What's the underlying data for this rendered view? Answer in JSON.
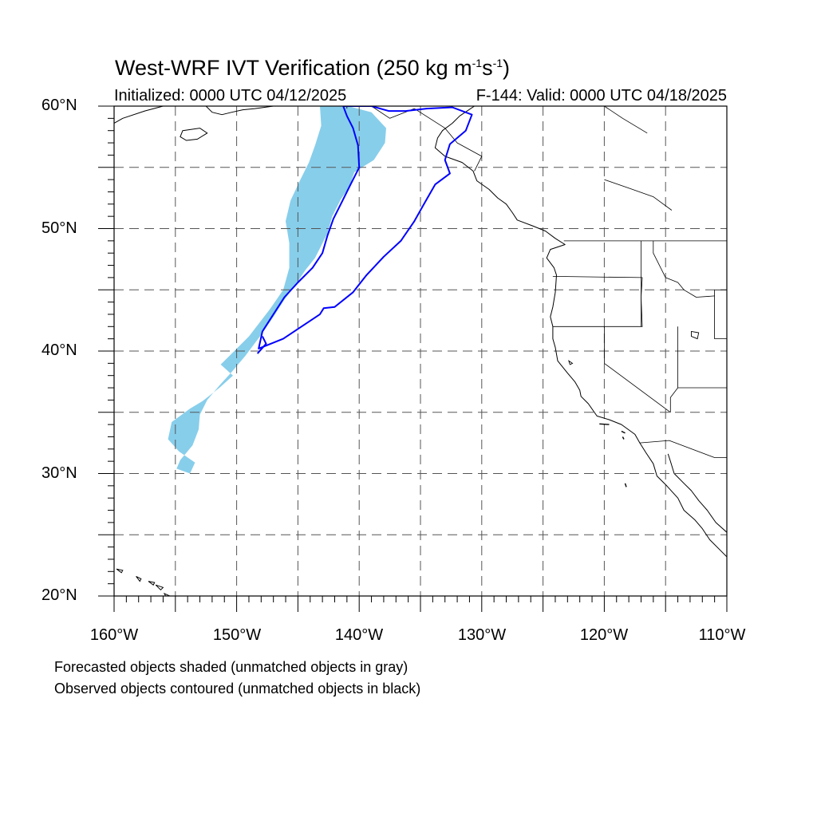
{
  "title": {
    "main": "West-WRF IVT Verification (250 kg m",
    "exp1": "-1",
    "mid": "s",
    "exp2": "-1",
    "end": ")"
  },
  "initialized": "Initialized: 0000 UTC 04/12/2025",
  "valid": "F-144: Valid: 0000 UTC 04/18/2025",
  "lat_labels": [
    "60°N",
    "50°N",
    "40°N",
    "30°N",
    "20°N"
  ],
  "lon_labels": [
    "160°W",
    "150°W",
    "140°W",
    "130°W",
    "120°W",
    "110°W"
  ],
  "captions": [
    "Forecasted objects shaded (unmatched objects in gray)",
    "Observed objects contoured (unmatched objects in black)"
  ],
  "map": {
    "lon_range": [
      -160,
      -110
    ],
    "lat_range": [
      20,
      60
    ],
    "grid_interval_deg": 5,
    "grid_style": "dashed",
    "colors": {
      "forecast_fill": "#87ceeb",
      "observed_contour": "#0000ff",
      "coastline": "#000000",
      "grid": "#555555"
    },
    "forecast_object": [
      [
        -143.2,
        60
      ],
      [
        -140.9,
        60
      ],
      [
        -139.0,
        59.5
      ],
      [
        -137.8,
        58.2
      ],
      [
        -137.9,
        57.0
      ],
      [
        -138.8,
        55.6
      ],
      [
        -140.4,
        54.6
      ],
      [
        -140.8,
        53.4
      ],
      [
        -141.5,
        52.4
      ],
      [
        -142.2,
        51.0
      ],
      [
        -142.6,
        49.6
      ],
      [
        -143.1,
        48.6
      ],
      [
        -143.6,
        47.6
      ],
      [
        -144.4,
        46.6
      ],
      [
        -145.2,
        45.4
      ],
      [
        -146.1,
        44.2
      ],
      [
        -147.0,
        42.8
      ],
      [
        -148.1,
        41.2
      ],
      [
        -149.3,
        39.6
      ],
      [
        -150.4,
        38.3
      ],
      [
        -151.4,
        37.2
      ],
      [
        -152.4,
        36.0
      ],
      [
        -153.0,
        34.8
      ],
      [
        -153.1,
        33.6
      ],
      [
        -153.6,
        32.3
      ],
      [
        -154.6,
        31.1
      ],
      [
        -154.9,
        30.4
      ],
      [
        -153.8,
        30.0
      ],
      [
        -153.4,
        30.9
      ],
      [
        -154.7,
        31.8
      ],
      [
        -155.6,
        32.8
      ],
      [
        -155.3,
        34.2
      ],
      [
        -153.8,
        35.3
      ],
      [
        -152.8,
        35.9
      ],
      [
        -151.4,
        37.0
      ],
      [
        -150.3,
        38.0
      ],
      [
        -151.3,
        38.9
      ],
      [
        -150.4,
        39.8
      ],
      [
        -149.0,
        41.2
      ],
      [
        -147.3,
        43.4
      ],
      [
        -146.2,
        45.0
      ],
      [
        -145.7,
        46.8
      ],
      [
        -145.7,
        48.8
      ],
      [
        -146.0,
        50.6
      ],
      [
        -145.6,
        52.3
      ],
      [
        -144.8,
        54.0
      ],
      [
        -144.1,
        55.4
      ],
      [
        -143.6,
        56.8
      ],
      [
        -143.1,
        58.4
      ]
    ],
    "observed_object_1": [
      [
        -141.3,
        60
      ],
      [
        -141.0,
        59.2
      ],
      [
        -140.5,
        58.2
      ],
      [
        -140.1,
        56.8
      ],
      [
        -140.0,
        55.0
      ],
      [
        -140.7,
        53.6
      ],
      [
        -141.4,
        52.2
      ],
      [
        -142.1,
        50.8
      ],
      [
        -142.6,
        49.4
      ],
      [
        -143.0,
        48.0
      ],
      [
        -143.8,
        46.8
      ],
      [
        -145.0,
        45.6
      ],
      [
        -146.1,
        44.4
      ],
      [
        -147.0,
        43.0
      ],
      [
        -147.9,
        41.6
      ],
      [
        -148.2,
        40.2
      ],
      [
        -146.2,
        41.0
      ],
      [
        -144.4,
        42.2
      ],
      [
        -143.2,
        43.0
      ],
      [
        -142.9,
        43.5
      ],
      [
        -142.0,
        43.6
      ],
      [
        -140.5,
        44.8
      ],
      [
        -139.4,
        46.2
      ],
      [
        -138.0,
        47.7
      ],
      [
        -136.6,
        49.0
      ],
      [
        -135.5,
        50.6
      ],
      [
        -134.6,
        52.2
      ],
      [
        -133.8,
        53.6
      ],
      [
        -132.6,
        54.5
      ],
      [
        -133.0,
        55.6
      ],
      [
        -132.6,
        56.9
      ],
      [
        -131.3,
        58.0
      ],
      [
        -130.8,
        59.3
      ],
      [
        -132.4,
        59.9
      ],
      [
        -134.5,
        59.8
      ],
      [
        -136.2,
        59.6
      ],
      [
        -137.6,
        59.6
      ],
      [
        -139.0,
        60.0
      ]
    ],
    "observed_object_2": [
      [
        -148.3,
        39.8
      ],
      [
        -147.6,
        40.6
      ],
      [
        -147.9,
        41.2
      ]
    ],
    "coastline_na": [
      [
        -130.6,
        60
      ],
      [
        -131.8,
        59.2
      ],
      [
        -132.4,
        58.6
      ],
      [
        -133.2,
        58.0
      ],
      [
        -133.6,
        57.4
      ],
      [
        -133.8,
        56.6
      ],
      [
        -133.0,
        55.9
      ],
      [
        -131.6,
        55.4
      ],
      [
        -130.7,
        54.7
      ],
      [
        -130.4,
        53.9
      ],
      [
        -129.4,
        53.2
      ],
      [
        -128.7,
        52.5
      ],
      [
        -128.0,
        52.0
      ],
      [
        -127.5,
        51.3
      ],
      [
        -127.1,
        50.7
      ],
      [
        -125.8,
        50.2
      ],
      [
        -124.8,
        49.8
      ],
      [
        -124.0,
        49.2
      ],
      [
        -123.2,
        48.7
      ],
      [
        -124.4,
        48.3
      ],
      [
        -124.7,
        47.6
      ],
      [
        -124.1,
        46.8
      ],
      [
        -123.9,
        46.2
      ],
      [
        -124.0,
        44.8
      ],
      [
        -124.2,
        43.6
      ],
      [
        -124.4,
        42.8
      ],
      [
        -124.2,
        42.0
      ],
      [
        -124.2,
        41.0
      ],
      [
        -124.0,
        40.3
      ],
      [
        -123.8,
        39.2
      ],
      [
        -123.0,
        38.2
      ],
      [
        -122.4,
        37.5
      ],
      [
        -122.0,
        36.8
      ],
      [
        -121.9,
        36.3
      ],
      [
        -121.3,
        35.7
      ],
      [
        -120.6,
        34.7
      ],
      [
        -119.6,
        34.4
      ],
      [
        -118.6,
        34.0
      ],
      [
        -117.5,
        33.2
      ],
      [
        -117.1,
        32.5
      ],
      [
        -116.6,
        31.7
      ],
      [
        -116.0,
        30.8
      ],
      [
        -115.7,
        29.8
      ],
      [
        -114.9,
        29.0
      ],
      [
        -114.0,
        28.0
      ],
      [
        -113.5,
        27.0
      ],
      [
        -112.6,
        26.2
      ],
      [
        -112.0,
        25.5
      ],
      [
        -111.4,
        24.6
      ],
      [
        -110.6,
        23.8
      ],
      [
        -110.0,
        23.2
      ]
    ],
    "coastline_gulf": [
      [
        -114.8,
        31.6
      ],
      [
        -114.6,
        31.0
      ],
      [
        -114.3,
        30.0
      ],
      [
        -113.5,
        29.2
      ],
      [
        -112.9,
        28.6
      ],
      [
        -112.3,
        27.8
      ],
      [
        -111.6,
        27.0
      ],
      [
        -110.9,
        26.0
      ],
      [
        -110.0,
        25.2
      ]
    ],
    "coastline_alaska": [
      [
        -156,
        60
      ],
      [
        -157.5,
        59.6
      ],
      [
        -159.3,
        59.0
      ],
      [
        -160,
        58.6
      ]
    ],
    "kenai": [
      [
        -152.5,
        60
      ],
      [
        -152.0,
        59.5
      ],
      [
        -151.2,
        59.3
      ],
      [
        -150.4,
        59.5
      ],
      [
        -149.5,
        59.7
      ],
      [
        -148.5,
        59.8
      ],
      [
        -147.0,
        60
      ]
    ],
    "kodiak": [
      [
        -154.4,
        58.0
      ],
      [
        -153.0,
        58.2
      ],
      [
        -152.4,
        57.8
      ],
      [
        -153.2,
        57.3
      ],
      [
        -154.1,
        57.2
      ],
      [
        -154.6,
        57.5
      ],
      [
        -154.4,
        58.0
      ]
    ],
    "hawaii": [
      [
        [
          -159.8,
          22.2
        ],
        [
          -159.3,
          22.1
        ],
        [
          -159.4,
          21.9
        ],
        [
          -159.8,
          22.2
        ]
      ],
      [
        [
          -158.2,
          21.6
        ],
        [
          -157.8,
          21.4
        ],
        [
          -157.9,
          21.2
        ],
        [
          -158.2,
          21.6
        ]
      ],
      [
        [
          -157.2,
          21.2
        ],
        [
          -156.7,
          21.1
        ],
        [
          -156.8,
          20.9
        ],
        [
          -157.2,
          21.2
        ]
      ],
      [
        [
          -156.6,
          20.9
        ],
        [
          -156.0,
          20.7
        ],
        [
          -156.2,
          20.5
        ],
        [
          -156.6,
          20.9
        ]
      ],
      [
        [
          -155.9,
          20.2
        ],
        [
          -155.0,
          19.8
        ],
        [
          -155.5,
          19.4
        ],
        [
          -155.9,
          20.2
        ]
      ]
    ],
    "borders": [
      [
        [
          -123.3,
          49.0
        ],
        [
          -110,
          49.0
        ]
      ],
      [
        [
          -141.0,
          60
        ],
        [
          -141.0,
          59.8
        ]
      ],
      [
        [
          -124.2,
          46.1
        ],
        [
          -116.9,
          46.0
        ],
        [
          -117.0,
          44.4
        ],
        [
          -116.9,
          42.0
        ],
        [
          -124.2,
          42.0
        ]
      ],
      [
        [
          -117.0,
          49.0
        ],
        [
          -117.0,
          42.0
        ]
      ],
      [
        [
          -120.0,
          42.0
        ],
        [
          -120.0,
          39.0
        ],
        [
          -114.6,
          35.0
        ]
      ],
      [
        [
          -114.0,
          42.0
        ],
        [
          -114.0,
          37.0
        ],
        [
          -114.6,
          36.2
        ],
        [
          -114.6,
          35.0
        ]
      ],
      [
        [
          -114.0,
          37.0
        ],
        [
          -110,
          37.0
        ]
      ],
      [
        [
          -111.0,
          45.0
        ],
        [
          -110,
          45.0
        ]
      ],
      [
        [
          -111.0,
          45.0
        ],
        [
          -111.0,
          41.0
        ],
        [
          -110,
          41.0
        ]
      ],
      [
        [
          -116.0,
          49.0
        ],
        [
          -116.0,
          48.0
        ],
        [
          -115.0,
          46.0
        ],
        [
          -114.0,
          45.6
        ],
        [
          -113.5,
          45.0
        ],
        [
          -112.5,
          44.4
        ],
        [
          -111.0,
          44.5
        ]
      ],
      [
        [
          -117.1,
          32.5
        ],
        [
          -114.7,
          32.7
        ],
        [
          -111.0,
          31.3
        ],
        [
          -110,
          31.3
        ]
      ],
      [
        [
          -139.0,
          60.0
        ],
        [
          -137.5,
          59.0
        ],
        [
          -135.5,
          59.8
        ],
        [
          -133.0,
          58.2
        ],
        [
          -132.0,
          57.0
        ],
        [
          -130.0,
          55.9
        ],
        [
          -130.6,
          54.7
        ]
      ]
    ],
    "rivers": [
      [
        [
          -120.0,
          54.0
        ],
        [
          -118.0,
          53.3
        ],
        [
          -116.0,
          52.6
        ],
        [
          -114.5,
          51.5
        ]
      ],
      [
        [
          -120.0,
          60.0
        ],
        [
          -118.5,
          59.0
        ],
        [
          -116.5,
          57.8
        ]
      ]
    ],
    "lakes": [
      [
        [
          -112.9,
          41.6
        ],
        [
          -112.3,
          41.5
        ],
        [
          -112.4,
          41.0
        ],
        [
          -112.9,
          41.2
        ],
        [
          -112.9,
          41.6
        ]
      ],
      [
        [
          -122.9,
          39.2
        ],
        [
          -122.6,
          39.0
        ],
        [
          -122.8,
          38.9
        ],
        [
          -122.9,
          39.2
        ]
      ]
    ],
    "channel_islands": [
      [
        [
          -120.4,
          34.05
        ],
        [
          -119.6,
          34.0
        ]
      ],
      [
        [
          -118.6,
          33.45
        ],
        [
          -118.3,
          33.3
        ]
      ],
      [
        [
          -118.5,
          33.0
        ],
        [
          -118.4,
          32.8
        ]
      ]
    ],
    "guadalupe": [
      [
        -118.3,
        29.2
      ],
      [
        -118.2,
        28.9
      ]
    ]
  }
}
